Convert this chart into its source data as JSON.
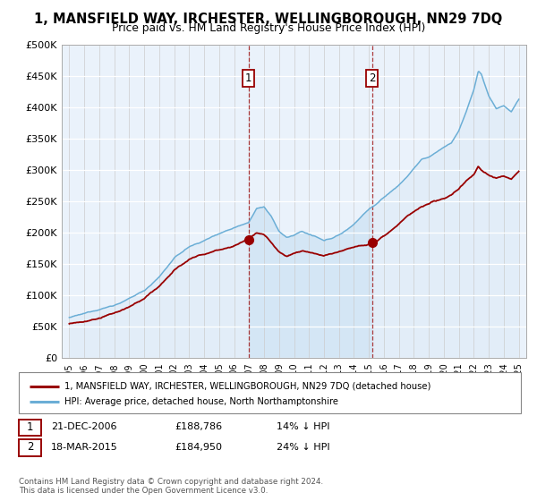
{
  "title": "1, MANSFIELD WAY, IRCHESTER, WELLINGBOROUGH, NN29 7DQ",
  "subtitle": "Price paid vs. HM Land Registry's House Price Index (HPI)",
  "legend_line1": "1, MANSFIELD WAY, IRCHESTER, WELLINGBOROUGH, NN29 7DQ (detached house)",
  "legend_line2": "HPI: Average price, detached house, North Northamptonshire",
  "annotation1": {
    "label": "1",
    "date": "21-DEC-2006",
    "price": "£188,786",
    "note": "14% ↓ HPI",
    "x_year": 2006.97
  },
  "annotation2": {
    "label": "2",
    "date": "18-MAR-2015",
    "price": "£184,950",
    "note": "24% ↓ HPI",
    "x_year": 2015.21
  },
  "footer": "Contains HM Land Registry data © Crown copyright and database right 2024.\nThis data is licensed under the Open Government Licence v3.0.",
  "hpi_color": "#6baed6",
  "price_color": "#990000",
  "hpi_fill_color": "#d4e6f5",
  "background_color": "#ffffff",
  "plot_bg_color": "#eaf2fb",
  "ylim": [
    0,
    500000
  ],
  "yticks": [
    0,
    50000,
    100000,
    150000,
    200000,
    250000,
    300000,
    350000,
    400000,
    450000,
    500000
  ],
  "xlim_start": 1994.5,
  "xlim_end": 2025.5,
  "xticks": [
    1995,
    1996,
    1997,
    1998,
    1999,
    2000,
    2001,
    2002,
    2003,
    2004,
    2005,
    2006,
    2007,
    2008,
    2009,
    2010,
    2011,
    2012,
    2013,
    2014,
    2015,
    2016,
    2017,
    2018,
    2019,
    2020,
    2021,
    2022,
    2023,
    2024,
    2025
  ]
}
